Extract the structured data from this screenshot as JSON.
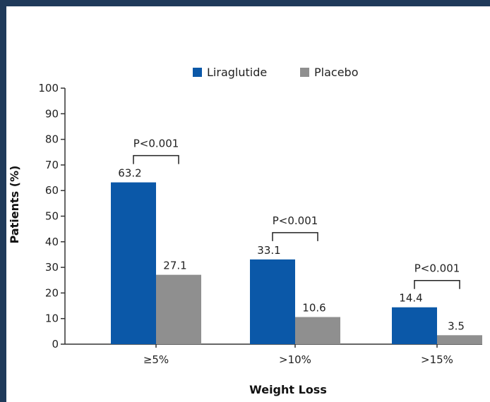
{
  "chart_data": {
    "type": "bar",
    "categories": [
      "≥5%",
      ">10%",
      ">15%"
    ],
    "series": [
      {
        "name": "Liraglutide",
        "values": [
          63.2,
          33.1,
          14.4
        ],
        "color": "#0b58a8"
      },
      {
        "name": "Placebo",
        "values": [
          27.1,
          10.6,
          3.5
        ],
        "color": "#8f8f8f"
      }
    ],
    "data_labels": [
      [
        "63.2",
        "33.1",
        "14.4"
      ],
      [
        "27.1",
        "10.6",
        "3.5"
      ]
    ],
    "annotations": [
      "P<0.001",
      "P<0.001",
      "P<0.001"
    ],
    "xlabel": "Weight Loss",
    "ylabel": "Patients (%)",
    "ylim": [
      0,
      100
    ],
    "yticks": [
      0,
      10,
      20,
      30,
      40,
      50,
      60,
      70,
      80,
      90,
      100
    ],
    "grid": false,
    "legend_position": "top"
  }
}
